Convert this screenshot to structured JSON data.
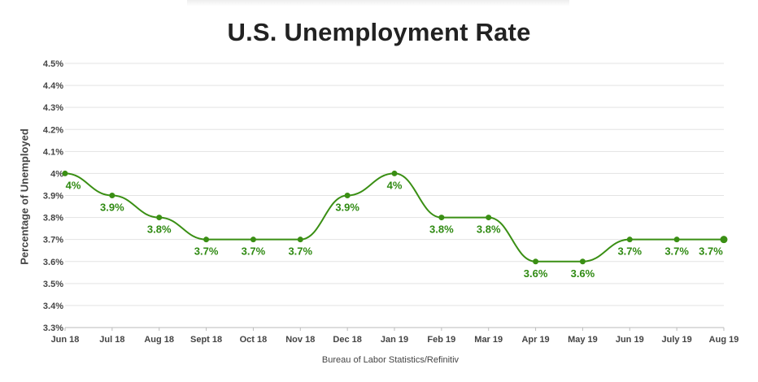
{
  "chart_data": {
    "type": "line",
    "title": "U.S. Unemployment Rate",
    "ylabel": "Percentage of Unemployed",
    "source": "Bureau of Labor Statistics/Refinitiv",
    "categories": [
      "Jun 18",
      "Jul 18",
      "Aug 18",
      "Sept 18",
      "Oct 18",
      "Nov 18",
      "Dec 18",
      "Jan 19",
      "Feb 19",
      "Mar 19",
      "Apr 19",
      "May 19",
      "Jun 19",
      "July 19",
      "Aug 19"
    ],
    "values": [
      4.0,
      3.9,
      3.8,
      3.7,
      3.7,
      3.7,
      3.9,
      4.0,
      3.8,
      3.8,
      3.6,
      3.6,
      3.7,
      3.7,
      3.7
    ],
    "data_labels": [
      "4%",
      "3.9%",
      "3.8%",
      "3.7%",
      "3.7%",
      "3.7%",
      "3.9%",
      "4%",
      "3.8%",
      "3.8%",
      "3.6%",
      "3.6%",
      "3.7%",
      "3.7%",
      "3.7%"
    ],
    "yticks": [
      "3.3%",
      "3.4%",
      "3.5%",
      "3.6%",
      "3.7%",
      "3.8%",
      "3.9%",
      "4%",
      "4.1%",
      "4.2%",
      "4.3%",
      "4.4%",
      "4.5%"
    ],
    "ylim": [
      3.3,
      4.5
    ],
    "grid": true,
    "legend": "none",
    "line_color": "#3a8f14",
    "label_color": "#2f8a12"
  }
}
